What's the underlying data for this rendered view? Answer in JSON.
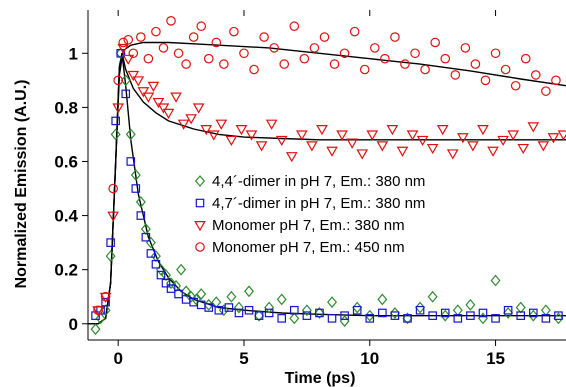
{
  "chart_data": {
    "type": "scatter",
    "xlabel": "Time (ps)",
    "ylabel": "Normalized Emission (A.U.)",
    "xlim": [
      -1.2,
      17.8
    ],
    "ylim": [
      -0.06,
      1.16
    ],
    "xticks": [
      0,
      5,
      10,
      15
    ],
    "xtick_labels": [
      "0",
      "5",
      "10",
      "15"
    ],
    "yticks": [
      0,
      0.2,
      0.4,
      0.6,
      0.8,
      1
    ],
    "ytick_labels": [
      "0",
      "0.2",
      "0.4",
      "0.6",
      "0.8",
      "1"
    ],
    "grid": false,
    "legend_position": "center-right",
    "series": [
      {
        "name": "4,4´-dimer in pH 7, Em.: 380 nm",
        "marker": "diamond",
        "color": "#2e8b2e",
        "x": [
          -0.9,
          -0.7,
          -0.5,
          -0.3,
          -0.1,
          0.1,
          0.3,
          0.5,
          0.7,
          0.9,
          1.1,
          1.3,
          1.5,
          1.7,
          1.9,
          2.1,
          2.3,
          2.5,
          2.7,
          2.9,
          3.1,
          3.3,
          3.6,
          3.9,
          4.2,
          4.5,
          4.8,
          5.2,
          5.6,
          6.0,
          6.5,
          7.0,
          7.5,
          8.0,
          8.5,
          9.0,
          9.5,
          10.0,
          10.5,
          11.0,
          11.5,
          12.0,
          12.5,
          13.0,
          13.5,
          14.0,
          14.5,
          15.0,
          15.5,
          16.0,
          16.5,
          17.0,
          17.5
        ],
        "y": [
          -0.02,
          0.02,
          0.05,
          0.25,
          0.7,
          1.0,
          0.9,
          0.7,
          0.55,
          0.45,
          0.35,
          0.3,
          0.25,
          0.2,
          0.18,
          0.15,
          0.14,
          0.2,
          0.12,
          0.1,
          0.09,
          0.11,
          0.07,
          0.08,
          0.05,
          0.1,
          0.06,
          0.12,
          0.03,
          0.06,
          0.09,
          0.02,
          0.05,
          0.04,
          0.08,
          0.01,
          0.06,
          0.03,
          0.09,
          0.04,
          0.02,
          0.06,
          0.1,
          0.03,
          0.05,
          0.07,
          0.02,
          0.16,
          0.04,
          0.06,
          0.03,
          0.05,
          0.02
        ]
      },
      {
        "name": "4,7´-dimer in pH 7, Em.: 380 nm",
        "marker": "square",
        "color": "#1515cc",
        "x": [
          -0.9,
          -0.7,
          -0.5,
          -0.3,
          -0.1,
          0.1,
          0.3,
          0.5,
          0.7,
          0.9,
          1.1,
          1.3,
          1.5,
          1.7,
          1.9,
          2.1,
          2.4,
          2.7,
          3.0,
          3.3,
          3.6,
          4.0,
          4.4,
          4.8,
          5.2,
          5.6,
          6.0,
          6.5,
          7.0,
          7.5,
          8.0,
          8.5,
          9.0,
          9.5,
          10.0,
          10.5,
          11.0,
          11.5,
          12.0,
          12.5,
          13.0,
          13.5,
          14.0,
          14.5,
          15.0,
          15.5,
          16.0,
          16.5,
          17.0,
          17.5
        ],
        "y": [
          0.03,
          0.05,
          0.08,
          0.3,
          0.75,
          1.0,
          0.85,
          0.6,
          0.5,
          0.4,
          0.32,
          0.26,
          0.22,
          0.18,
          0.15,
          0.13,
          0.11,
          0.09,
          0.08,
          0.07,
          0.06,
          0.05,
          0.06,
          0.04,
          0.05,
          0.03,
          0.04,
          0.02,
          0.05,
          0.03,
          0.04,
          0.02,
          0.03,
          0.05,
          0.02,
          0.04,
          0.03,
          0.02,
          0.05,
          0.03,
          0.04,
          0.02,
          0.03,
          0.04,
          0.02,
          0.05,
          0.03,
          0.04,
          0.02,
          0.03
        ]
      },
      {
        "name": "Monomer pH 7, Em.: 380 nm",
        "marker": "triangle-down",
        "color": "#e01010",
        "x": [
          -0.8,
          -0.5,
          -0.2,
          0.0,
          0.2,
          0.4,
          0.6,
          0.8,
          1.0,
          1.2,
          1.4,
          1.6,
          1.8,
          2.0,
          2.3,
          2.6,
          2.9,
          3.2,
          3.5,
          3.8,
          4.1,
          4.5,
          4.9,
          5.3,
          5.7,
          6.1,
          6.5,
          6.9,
          7.3,
          7.7,
          8.1,
          8.5,
          8.9,
          9.3,
          9.7,
          10.1,
          10.5,
          10.9,
          11.3,
          11.7,
          12.1,
          12.5,
          12.9,
          13.3,
          13.7,
          14.1,
          14.5,
          14.9,
          15.3,
          15.7,
          16.1,
          16.5,
          16.9,
          17.3,
          17.7
        ],
        "y": [
          0.05,
          0.1,
          0.4,
          0.8,
          1.02,
          0.98,
          0.92,
          0.9,
          0.86,
          0.84,
          0.88,
          0.82,
          0.8,
          0.78,
          0.84,
          0.74,
          0.76,
          0.8,
          0.72,
          0.7,
          0.74,
          0.68,
          0.72,
          0.7,
          0.66,
          0.74,
          0.68,
          0.62,
          0.7,
          0.66,
          0.72,
          0.64,
          0.7,
          0.67,
          0.63,
          0.7,
          0.66,
          0.72,
          0.64,
          0.7,
          0.68,
          0.65,
          0.72,
          0.63,
          0.69,
          0.66,
          0.72,
          0.64,
          0.68,
          0.7,
          0.65,
          0.73,
          0.66,
          0.69,
          0.7
        ]
      },
      {
        "name": "Monomer pH 7, Em.: 450 nm",
        "marker": "circle",
        "color": "#e01010",
        "x": [
          -0.8,
          -0.5,
          -0.2,
          0.0,
          0.2,
          0.4,
          0.6,
          0.9,
          1.2,
          1.5,
          1.8,
          2.1,
          2.4,
          2.7,
          3.0,
          3.3,
          3.6,
          3.9,
          4.2,
          4.6,
          5.0,
          5.4,
          5.8,
          6.2,
          6.6,
          7.0,
          7.4,
          7.8,
          8.2,
          8.6,
          9.0,
          9.4,
          9.8,
          10.2,
          10.6,
          11.0,
          11.4,
          11.8,
          12.2,
          12.6,
          13.0,
          13.4,
          13.8,
          14.2,
          14.6,
          15.0,
          15.4,
          15.8,
          16.2,
          16.6,
          17.0,
          17.4
        ],
        "y": [
          0.05,
          0.1,
          0.5,
          0.9,
          1.04,
          1.05,
          1.0,
          1.06,
          0.98,
          1.08,
          1.02,
          1.12,
          1.0,
          0.96,
          1.06,
          1.1,
          0.98,
          1.04,
          0.96,
          1.08,
          1.0,
          0.94,
          1.06,
          1.02,
          0.96,
          1.1,
          0.98,
          1.02,
          1.06,
          0.96,
          1.0,
          1.08,
          0.94,
          1.02,
          0.98,
          1.06,
          0.96,
          1.0,
          0.94,
          1.04,
          0.98,
          0.92,
          1.02,
          0.96,
          0.9,
          1.0,
          0.94,
          0.88,
          0.98,
          0.92,
          0.86,
          0.9
        ]
      }
    ],
    "fits": [
      {
        "x": [
          -1.2,
          -0.8,
          -0.5,
          -0.3,
          -0.1,
          0.05,
          0.15,
          0.3,
          0.5,
          0.8,
          1.2,
          1.6,
          2.0,
          2.5,
          3.0,
          4.0,
          5.0,
          6.5,
          8.0,
          10.0,
          12.0,
          15.0,
          17.8
        ],
        "y": [
          0.0,
          0.0,
          0.02,
          0.15,
          0.6,
          0.95,
          1.0,
          0.88,
          0.68,
          0.48,
          0.32,
          0.23,
          0.17,
          0.12,
          0.09,
          0.06,
          0.05,
          0.04,
          0.035,
          0.03,
          0.03,
          0.03,
          0.03
        ]
      },
      {
        "x": [
          -1.2,
          -0.8,
          -0.5,
          -0.3,
          -0.1,
          0.05,
          0.15,
          0.3,
          0.6,
          1.0,
          1.5,
          2.0,
          3.0,
          4.0,
          5.0,
          6.5,
          8.0,
          10.0,
          12.0,
          15.0,
          17.8
        ],
        "y": [
          0.0,
          0.0,
          0.02,
          0.15,
          0.6,
          0.95,
          1.0,
          0.94,
          0.87,
          0.82,
          0.78,
          0.75,
          0.72,
          0.7,
          0.69,
          0.685,
          0.68,
          0.68,
          0.68,
          0.68,
          0.68
        ]
      },
      {
        "x": [
          -1.2,
          -0.8,
          -0.5,
          -0.3,
          -0.1,
          0.05,
          0.2,
          0.5,
          1.0,
          2.0,
          3.0,
          4.0,
          6.0,
          8.0,
          10.0,
          12.0,
          14.0,
          16.0,
          17.8
        ],
        "y": [
          0.0,
          0.0,
          0.02,
          0.15,
          0.6,
          0.92,
          1.01,
          1.03,
          1.04,
          1.04,
          1.035,
          1.03,
          1.02,
          1.0,
          0.98,
          0.96,
          0.935,
          0.905,
          0.88
        ]
      }
    ]
  }
}
